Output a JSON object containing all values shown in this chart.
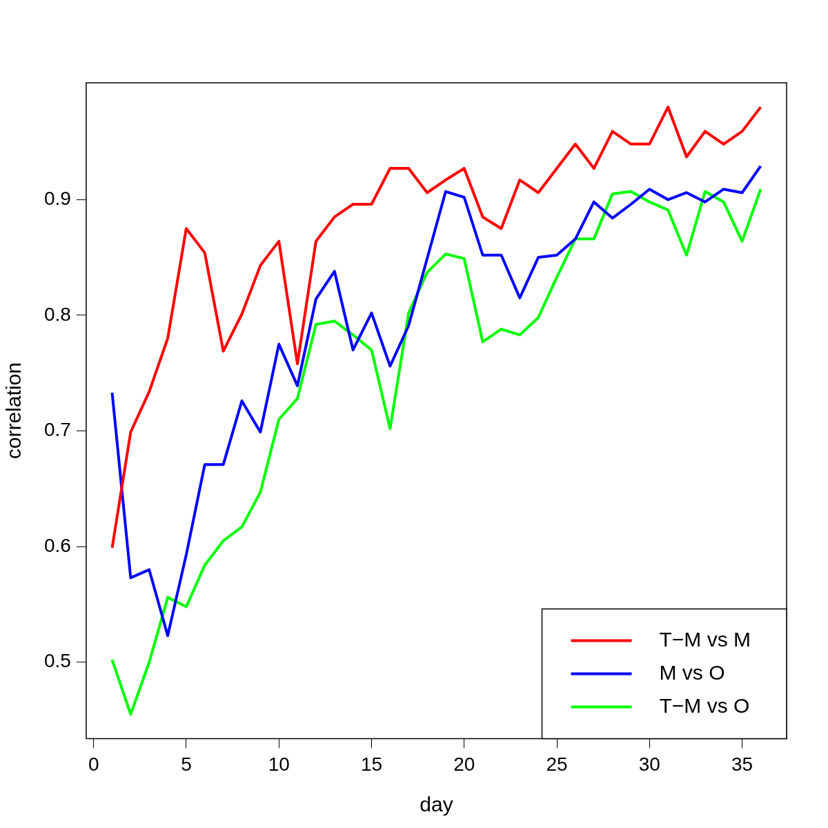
{
  "chart_data": {
    "type": "line",
    "xlabel": "day",
    "ylabel": "correlation",
    "x": [
      1,
      2,
      3,
      4,
      5,
      6,
      7,
      8,
      9,
      10,
      11,
      12,
      13,
      14,
      15,
      16,
      17,
      18,
      19,
      20,
      21,
      22,
      23,
      24,
      25,
      26,
      27,
      28,
      29,
      30,
      31,
      32,
      33,
      34,
      35,
      36
    ],
    "xlim": [
      -0.4,
      37.4
    ],
    "xticks": [
      0,
      5,
      10,
      15,
      20,
      25,
      30,
      35
    ],
    "ylim": [
      0.434,
      1.001
    ],
    "yticks": [
      0.5,
      0.6,
      0.7,
      0.8,
      0.9
    ],
    "grid": false,
    "legend": "bottom right",
    "marker": "none",
    "line_style": "solid",
    "series": [
      {
        "name": "T−M vs M",
        "color": "#ff0000",
        "values": [
          0.599,
          0.699,
          0.734,
          0.78,
          0.875,
          0.854,
          0.769,
          0.801,
          0.843,
          0.864,
          0.758,
          0.864,
          0.885,
          0.896,
          0.896,
          0.927,
          0.927,
          0.906,
          0.917,
          0.927,
          0.885,
          0.875,
          0.917,
          0.906,
          0.927,
          0.948,
          0.927,
          0.959,
          0.948,
          0.948,
          0.98,
          0.937,
          0.959,
          0.948,
          0.959,
          0.98
        ]
      },
      {
        "name": "M vs O",
        "color": "#0000ff",
        "values": [
          0.733,
          0.573,
          0.58,
          0.523,
          0.593,
          0.671,
          0.671,
          0.726,
          0.699,
          0.775,
          0.739,
          0.814,
          0.838,
          0.77,
          0.802,
          0.756,
          0.791,
          0.849,
          0.907,
          0.902,
          0.852,
          0.852,
          0.815,
          0.85,
          0.852,
          0.866,
          0.898,
          0.884,
          0.896,
          0.909,
          0.9,
          0.906,
          0.898,
          0.909,
          0.906,
          0.929
        ]
      },
      {
        "name": "T−M vs O",
        "color": "#00ff00",
        "values": [
          0.502,
          0.455,
          0.5,
          0.556,
          0.548,
          0.584,
          0.605,
          0.617,
          0.647,
          0.71,
          0.728,
          0.792,
          0.795,
          0.783,
          0.77,
          0.702,
          0.802,
          0.837,
          0.853,
          0.849,
          0.777,
          0.788,
          0.783,
          0.798,
          0.833,
          0.866,
          0.866,
          0.905,
          0.907,
          0.898,
          0.891,
          0.852,
          0.907,
          0.898,
          0.864,
          0.909
        ]
      }
    ]
  }
}
